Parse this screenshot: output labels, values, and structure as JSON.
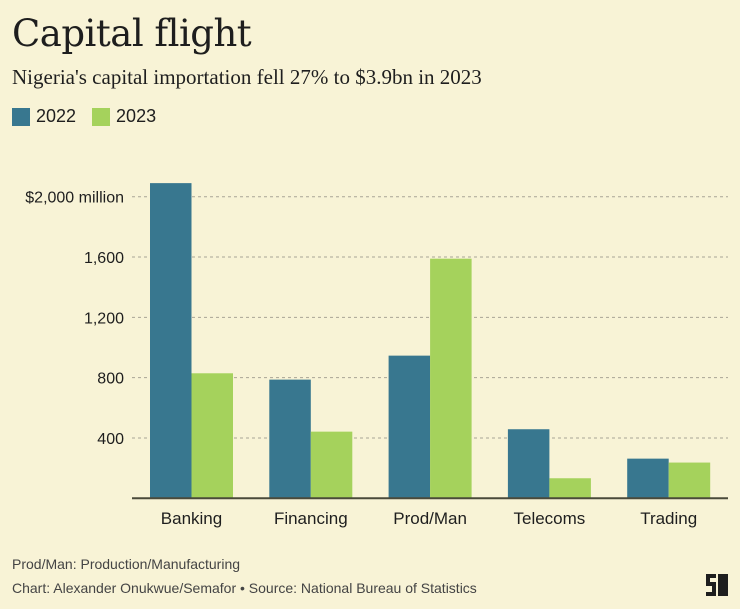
{
  "title": "Capital flight",
  "subtitle": "Nigeria's capital importation fell 27% to $3.9bn in 2023",
  "footnote": "Prod/Man: Production/Manufacturing",
  "credit": "Chart: Alexander Onukwue/Semafor • Source: National Bureau of Statistics",
  "logo_text": "S",
  "chart_data": {
    "type": "bar",
    "categories": [
      "Banking",
      "Financing",
      "Prod/Man",
      "Telecoms",
      "Trading"
    ],
    "series": [
      {
        "name": "2022",
        "color": "#38778f",
        "values": [
          2090,
          787,
          946,
          458,
          263
        ]
      },
      {
        "name": "2023",
        "color": "#a5d25c",
        "values": [
          829,
          442,
          1589,
          133,
          237
        ]
      }
    ],
    "ylim": [
      0,
      2000
    ],
    "yticks": [
      400,
      800,
      1200,
      1600,
      2000
    ],
    "ytick_labels": [
      "400",
      "800",
      "1,200",
      "1,600",
      "$2,000 million"
    ],
    "grid": true,
    "legend": "top-left"
  }
}
